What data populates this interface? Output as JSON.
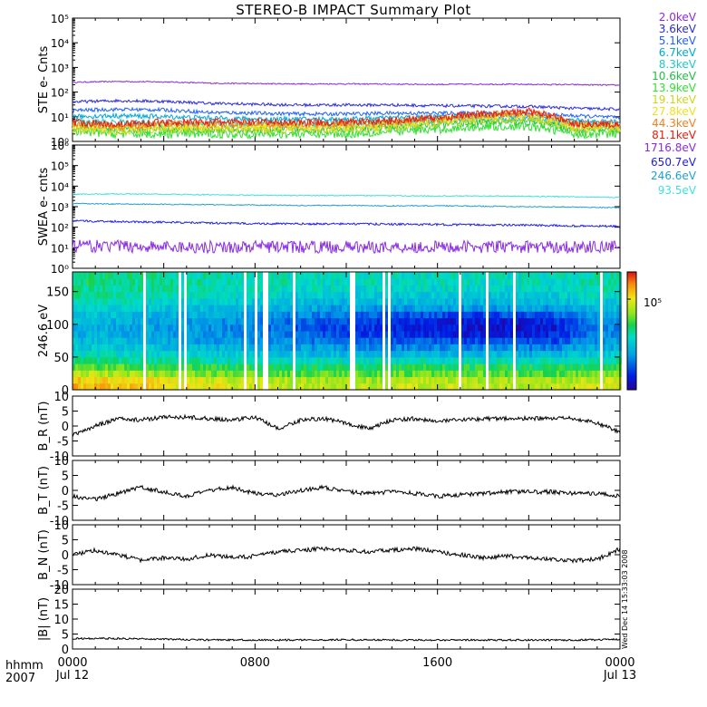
{
  "title": "STEREO-B IMPACT Summary Plot",
  "side_stamp": "Wed Dec 14 15:33:03 2008",
  "footer": {
    "time_label": "hhmm",
    "year_label": "2007"
  },
  "x_axis": {
    "ticks": [
      {
        "time": "0000",
        "date": "Jul 12",
        "hour": 0
      },
      {
        "time": "0800",
        "date": "",
        "hour": 8
      },
      {
        "time": "1600",
        "date": "",
        "hour": 16
      },
      {
        "time": "0000",
        "date": "Jul 13",
        "hour": 24
      }
    ],
    "range_hours": [
      0,
      24
    ]
  },
  "colors": {
    "ste": [
      "#8a2be2",
      "#2b2bd6",
      "#2060ff",
      "#00a8d8",
      "#20c8c8",
      "#20c040",
      "#30e030",
      "#c8d820",
      "#f0e020",
      "#f08020",
      "#e02010"
    ],
    "swea": [
      "#8a2be2",
      "#2020e0",
      "#20a0d0",
      "#40e0e0"
    ]
  },
  "ste_legend": [
    "2.0keV",
    "3.6keV",
    "5.1keV",
    "6.7keV",
    "8.3keV",
    "10.6keV",
    "13.9keV",
    "19.1keV",
    "27.8keV",
    "44.3keV",
    "81.1keV"
  ],
  "swea_legend": [
    "1716.8eV",
    "650.7eV",
    "246.6eV",
    "93.5eV"
  ],
  "chart_data": [
    {
      "type": "line",
      "id": "ste",
      "ylabel": "STE e- Cnts",
      "yscale": "log",
      "ylim": [
        1,
        100000
      ],
      "ytick_labels": [
        "10⁰",
        "10¹",
        "10²",
        "10³",
        "10⁴",
        "10⁵"
      ],
      "x": [
        0,
        2,
        4,
        6,
        8,
        10,
        12,
        14,
        16,
        18,
        20,
        22,
        24
      ],
      "series": [
        {
          "name": "2.0keV",
          "values": [
            250,
            270,
            260,
            230,
            220,
            215,
            215,
            210,
            205,
            210,
            205,
            200,
            190
          ]
        },
        {
          "name": "3.6keV",
          "values": [
            40,
            45,
            42,
            35,
            32,
            30,
            30,
            30,
            28,
            27,
            26,
            22,
            20
          ]
        },
        {
          "name": "5.1keV",
          "values": [
            18,
            20,
            19,
            15,
            14,
            13,
            13,
            14,
            14,
            14,
            13,
            11,
            9
          ]
        },
        {
          "name": "6.7keV",
          "values": [
            10,
            11,
            10,
            9,
            8,
            8,
            8,
            9,
            10,
            11,
            10,
            7,
            6
          ]
        },
        {
          "name": "8.3keV",
          "values": [
            6,
            6,
            5,
            5,
            5,
            5,
            5,
            6,
            7,
            8,
            8,
            5,
            4
          ]
        },
        {
          "name": "10.6keV",
          "values": [
            4,
            3,
            3,
            3,
            3,
            3,
            3,
            4,
            5,
            6,
            6,
            3,
            3
          ]
        },
        {
          "name": "13.9keV",
          "values": [
            2.5,
            2,
            2,
            2,
            2,
            2,
            2,
            2.5,
            3,
            4,
            4,
            2,
            2
          ]
        },
        {
          "name": "19.1keV",
          "values": [
            3,
            2.5,
            3,
            3,
            3,
            3,
            3,
            3.5,
            5,
            7,
            8,
            3,
            3
          ]
        },
        {
          "name": "27.8keV",
          "values": [
            4,
            3.5,
            4,
            4,
            4,
            4,
            4,
            5,
            7,
            10,
            12,
            4,
            4
          ]
        },
        {
          "name": "44.3keV",
          "values": [
            5,
            4,
            5,
            5,
            5,
            5,
            5,
            6,
            8,
            12,
            14,
            5,
            5
          ]
        },
        {
          "name": "81.1keV",
          "values": [
            6,
            5,
            6,
            6,
            6,
            6,
            6,
            7,
            9,
            13,
            16,
            5,
            5
          ]
        }
      ]
    },
    {
      "type": "line",
      "id": "swea",
      "ylabel": "SWEA e- cnts",
      "yscale": "log",
      "ylim": [
        1,
        1000000
      ],
      "ytick_labels": [
        "10⁰",
        "10¹",
        "10²",
        "10³",
        "10⁴",
        "10⁵",
        "10⁶"
      ],
      "x": [
        0,
        2,
        4,
        6,
        8,
        10,
        12,
        14,
        16,
        18,
        20,
        22,
        24
      ],
      "series": [
        {
          "name": "1716.8eV",
          "values": [
            12,
            12,
            11,
            11,
            11,
            11,
            11,
            11,
            11,
            11,
            11,
            11,
            11
          ]
        },
        {
          "name": "650.7eV",
          "values": [
            200,
            190,
            175,
            160,
            150,
            145,
            145,
            140,
            135,
            130,
            125,
            115,
            110
          ]
        },
        {
          "name": "246.6eV",
          "values": [
            1400,
            1350,
            1300,
            1250,
            1200,
            1150,
            1150,
            1100,
            1100,
            1050,
            1000,
            950,
            900
          ]
        },
        {
          "name": "93.5eV",
          "values": [
            4000,
            4200,
            4000,
            3800,
            3600,
            3500,
            3500,
            3400,
            3300,
            3300,
            3200,
            3000,
            2800
          ]
        }
      ]
    },
    {
      "type": "heatmap",
      "id": "pad",
      "ylabel": "246.6 eV",
      "ylim": [
        0,
        180
      ],
      "yticks": [
        0,
        50,
        100,
        150
      ],
      "colorbar_label": "10⁵",
      "y_bins": [
        5,
        15,
        25,
        35,
        45,
        55,
        65,
        75,
        85,
        95,
        105,
        115,
        125,
        135,
        145,
        155,
        165,
        175
      ],
      "x_bins": [
        1,
        3,
        5,
        7,
        9,
        11,
        13,
        15,
        17,
        19,
        21,
        23
      ],
      "values_norm": [
        [
          0.85,
          0.8,
          0.78,
          0.75,
          0.72,
          0.7,
          0.7,
          0.72,
          0.72,
          0.7,
          0.7,
          0.75
        ],
        [
          0.8,
          0.78,
          0.75,
          0.72,
          0.7,
          0.68,
          0.68,
          0.7,
          0.7,
          0.68,
          0.68,
          0.72
        ],
        [
          0.7,
          0.68,
          0.65,
          0.62,
          0.6,
          0.6,
          0.6,
          0.62,
          0.62,
          0.6,
          0.6,
          0.65
        ],
        [
          0.6,
          0.58,
          0.56,
          0.55,
          0.54,
          0.53,
          0.53,
          0.54,
          0.55,
          0.54,
          0.54,
          0.56
        ],
        [
          0.5,
          0.5,
          0.48,
          0.47,
          0.46,
          0.45,
          0.45,
          0.45,
          0.45,
          0.45,
          0.45,
          0.48
        ],
        [
          0.45,
          0.44,
          0.42,
          0.4,
          0.38,
          0.36,
          0.35,
          0.34,
          0.34,
          0.34,
          0.34,
          0.4
        ],
        [
          0.4,
          0.38,
          0.36,
          0.34,
          0.32,
          0.3,
          0.28,
          0.26,
          0.26,
          0.26,
          0.26,
          0.34
        ],
        [
          0.36,
          0.34,
          0.32,
          0.3,
          0.27,
          0.24,
          0.22,
          0.2,
          0.18,
          0.18,
          0.18,
          0.3
        ],
        [
          0.34,
          0.32,
          0.3,
          0.28,
          0.24,
          0.2,
          0.16,
          0.12,
          0.1,
          0.1,
          0.12,
          0.28
        ],
        [
          0.34,
          0.32,
          0.3,
          0.27,
          0.22,
          0.18,
          0.14,
          0.1,
          0.08,
          0.08,
          0.1,
          0.27
        ],
        [
          0.35,
          0.33,
          0.3,
          0.28,
          0.24,
          0.2,
          0.16,
          0.12,
          0.1,
          0.1,
          0.12,
          0.28
        ],
        [
          0.38,
          0.36,
          0.34,
          0.32,
          0.28,
          0.25,
          0.22,
          0.2,
          0.18,
          0.18,
          0.2,
          0.32
        ],
        [
          0.42,
          0.4,
          0.38,
          0.36,
          0.34,
          0.32,
          0.3,
          0.3,
          0.3,
          0.3,
          0.3,
          0.36
        ],
        [
          0.45,
          0.44,
          0.42,
          0.4,
          0.38,
          0.36,
          0.36,
          0.36,
          0.36,
          0.36,
          0.36,
          0.4
        ],
        [
          0.48,
          0.47,
          0.45,
          0.44,
          0.42,
          0.4,
          0.4,
          0.4,
          0.4,
          0.4,
          0.4,
          0.44
        ],
        [
          0.5,
          0.49,
          0.47,
          0.46,
          0.44,
          0.43,
          0.43,
          0.43,
          0.43,
          0.43,
          0.43,
          0.46
        ],
        [
          0.52,
          0.5,
          0.48,
          0.47,
          0.46,
          0.45,
          0.45,
          0.45,
          0.45,
          0.45,
          0.45,
          0.48
        ],
        [
          0.52,
          0.5,
          0.48,
          0.47,
          0.46,
          0.45,
          0.45,
          0.45,
          0.45,
          0.45,
          0.45,
          0.48
        ]
      ]
    },
    {
      "type": "line",
      "id": "br",
      "ylabel": "B_R (nT)",
      "ylim": [
        -10,
        10
      ],
      "yticks": [
        -10,
        -5,
        0,
        5,
        10
      ],
      "x": [
        0,
        1,
        2,
        3,
        4,
        5,
        6,
        7,
        8,
        9,
        10,
        11,
        12,
        13,
        14,
        15,
        16,
        17,
        18,
        19,
        20,
        21,
        22,
        23,
        24
      ],
      "values": [
        -3,
        0,
        2.5,
        2,
        3,
        3,
        2.5,
        2,
        3,
        -1,
        2,
        2.5,
        1,
        -1,
        2,
        2.5,
        1.5,
        2,
        2.5,
        2.5,
        2.5,
        2.5,
        2.5,
        1,
        -2
      ]
    },
    {
      "type": "line",
      "id": "bt",
      "ylabel": "B_T (nT)",
      "ylim": [
        -10,
        10
      ],
      "yticks": [
        -10,
        -5,
        0,
        5,
        10
      ],
      "x": [
        0,
        1,
        2,
        3,
        4,
        5,
        6,
        7,
        8,
        9,
        10,
        11,
        12,
        13,
        14,
        15,
        16,
        17,
        18,
        19,
        20,
        21,
        22,
        23,
        24
      ],
      "values": [
        -2,
        -3,
        -1,
        1,
        -0.5,
        -2,
        0,
        1,
        -1,
        -1.5,
        0,
        1,
        -0.5,
        -1,
        -0.5,
        -1,
        -2,
        -1.5,
        -1,
        -0.5,
        -0.5,
        -0.5,
        -1,
        -1,
        -2
      ]
    },
    {
      "type": "line",
      "id": "bn",
      "ylabel": "B_N (nT)",
      "ylim": [
        -10,
        10
      ],
      "yticks": [
        -10,
        -5,
        0,
        5,
        10
      ],
      "x": [
        0,
        1,
        2,
        3,
        4,
        5,
        6,
        7,
        8,
        9,
        10,
        11,
        12,
        13,
        14,
        15,
        16,
        17,
        18,
        19,
        20,
        21,
        22,
        23,
        24
      ],
      "values": [
        0,
        1.5,
        0,
        -2,
        -1,
        -1.5,
        0,
        -1,
        -0.5,
        1,
        1.5,
        2,
        1.5,
        1,
        1.5,
        2,
        1,
        0,
        -1,
        -0.5,
        -1,
        -1.5,
        -2,
        -1.5,
        2
      ]
    },
    {
      "type": "line",
      "id": "bmag",
      "ylabel": "|B| (nT)",
      "ylim": [
        0,
        20
      ],
      "yticks": [
        0,
        5,
        10,
        15,
        20
      ],
      "x": [
        0,
        2,
        4,
        6,
        8,
        10,
        12,
        14,
        16,
        18,
        20,
        22,
        24
      ],
      "values": [
        3.5,
        3.5,
        3.3,
        3.0,
        3.0,
        3.0,
        3.1,
        3.0,
        3.0,
        3.0,
        3.0,
        3.0,
        3.2
      ]
    }
  ]
}
